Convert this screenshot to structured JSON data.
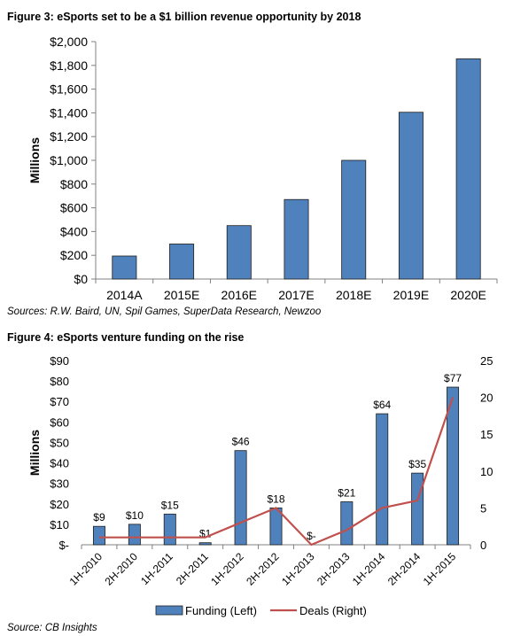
{
  "colors": {
    "bar": "#4f81bd",
    "bar_stroke": "#1f1f1f",
    "line": "#c0504d",
    "axis": "#808080"
  },
  "figure3": {
    "title": "Figure 3: eSports set to be a $1 billion revenue opportunity by 2018",
    "source": "Sources: R.W. Baird, UN, Spil Games, SuperData Research, Newzoo",
    "chart_data": {
      "type": "bar",
      "title": "Figure 3: eSports set to be a $1 billion revenue opportunity by 2018",
      "xlabel": "",
      "ylabel": "Millions",
      "categories": [
        "2014A",
        "2015E",
        "2016E",
        "2017E",
        "2018E",
        "2019E",
        "2020E"
      ],
      "values": [
        194,
        295,
        450,
        670,
        1000,
        1405,
        1855
      ],
      "ylim": [
        0,
        2000
      ],
      "yticks": [
        0,
        200,
        400,
        600,
        800,
        1000,
        1200,
        1400,
        1600,
        1800,
        2000
      ],
      "ytick_labels": [
        "$0",
        "$200",
        "$400",
        "$600",
        "$800",
        "$1,000",
        "$1,200",
        "$1,400",
        "$1,600",
        "$1,800",
        "$2,000"
      ],
      "grid": false
    }
  },
  "figure4": {
    "title": "Figure 4: eSports venture funding on the rise",
    "source": "Source: CB Insights",
    "chart_data": {
      "type": "bar",
      "ylabel": "Millions",
      "categories": [
        "1H-2010",
        "2H-2010",
        "1H-2011",
        "2H-2011",
        "1H-2012",
        "2H-2012",
        "1H-2013",
        "2H-2013",
        "1H-2014",
        "2H-2014",
        "1H-2015"
      ],
      "series": [
        {
          "name": "Funding (Left)",
          "type": "bar",
          "axis": "left",
          "values": [
            9,
            10,
            15,
            1,
            46,
            18,
            0,
            21,
            64,
            35,
            77
          ],
          "labels": [
            "$9",
            "$10",
            "$15",
            "$1",
            "$46",
            "$18",
            "$-",
            "$21",
            "$64",
            "$35",
            "$77"
          ]
        },
        {
          "name": "Deals (Right)",
          "type": "line",
          "axis": "right",
          "values": [
            1,
            1,
            1,
            1,
            3,
            5,
            0,
            2,
            5,
            6,
            20
          ]
        }
      ],
      "ylim_left": [
        0,
        90
      ],
      "yticks_left": [
        0,
        10,
        20,
        30,
        40,
        50,
        60,
        70,
        80,
        90
      ],
      "ytick_labels_left": [
        "$-",
        "$10",
        "$20",
        "$30",
        "$40",
        "$50",
        "$60",
        "$70",
        "$80",
        "$90"
      ],
      "ylim_right": [
        0,
        25
      ],
      "yticks_right": [
        0,
        5,
        10,
        15,
        20,
        25
      ],
      "ytick_labels_right": [
        "0",
        "5",
        "10",
        "15",
        "20",
        "25"
      ],
      "legend": "bottom",
      "grid": false
    }
  }
}
